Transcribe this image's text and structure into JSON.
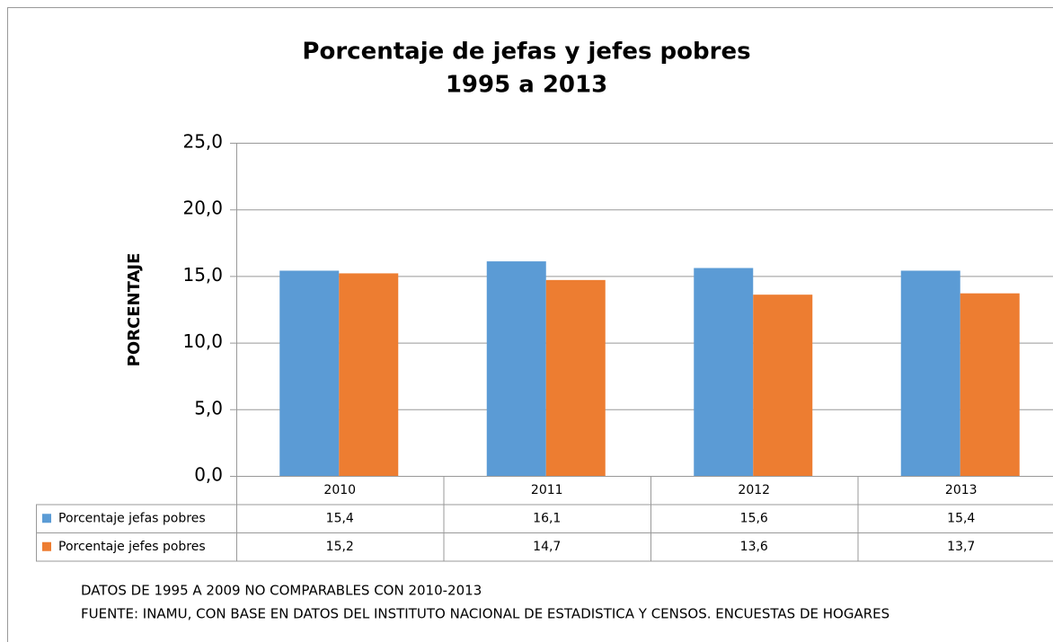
{
  "chart_data": {
    "type": "bar",
    "title": "Porcentaje de jefas y jefes pobres",
    "subtitle": "1995 a 2013",
    "y_label": "PORCENTAJE",
    "categories": [
      "2010",
      "2011",
      "2012",
      "2013"
    ],
    "series": [
      {
        "name": "Porcentaje jefas pobres",
        "color": "#5b9bd5",
        "values": [
          15.4,
          16.1,
          15.6,
          15.4
        ],
        "value_labels": [
          "15,4",
          "16,1",
          "15,6",
          "15,4"
        ]
      },
      {
        "name": "Porcentaje jefes pobres",
        "color": "#ed7d31",
        "values": [
          15.2,
          14.7,
          13.6,
          13.7
        ],
        "value_labels": [
          "15,2",
          "14,7",
          "13,6",
          "13,7"
        ]
      }
    ],
    "ylim": [
      0,
      25
    ],
    "yticks": [
      {
        "value": 0,
        "label": "0,0"
      },
      {
        "value": 5,
        "label": "5,0"
      },
      {
        "value": 10,
        "label": "10,0"
      },
      {
        "value": 15,
        "label": "15,0"
      },
      {
        "value": 20,
        "label": "20,0"
      },
      {
        "value": 25,
        "label": "25,0"
      }
    ],
    "grid": true,
    "notes": [
      "DATOS DE 1995 A 2009 NO COMPARABLES CON 2010-2013",
      "FUENTE: INAMU, CON BASE EN DATOS DEL INSTITUTO NACIONAL  DE ESTADISTICA Y CENSOS. ENCUESTAS DE HOGARES"
    ]
  }
}
